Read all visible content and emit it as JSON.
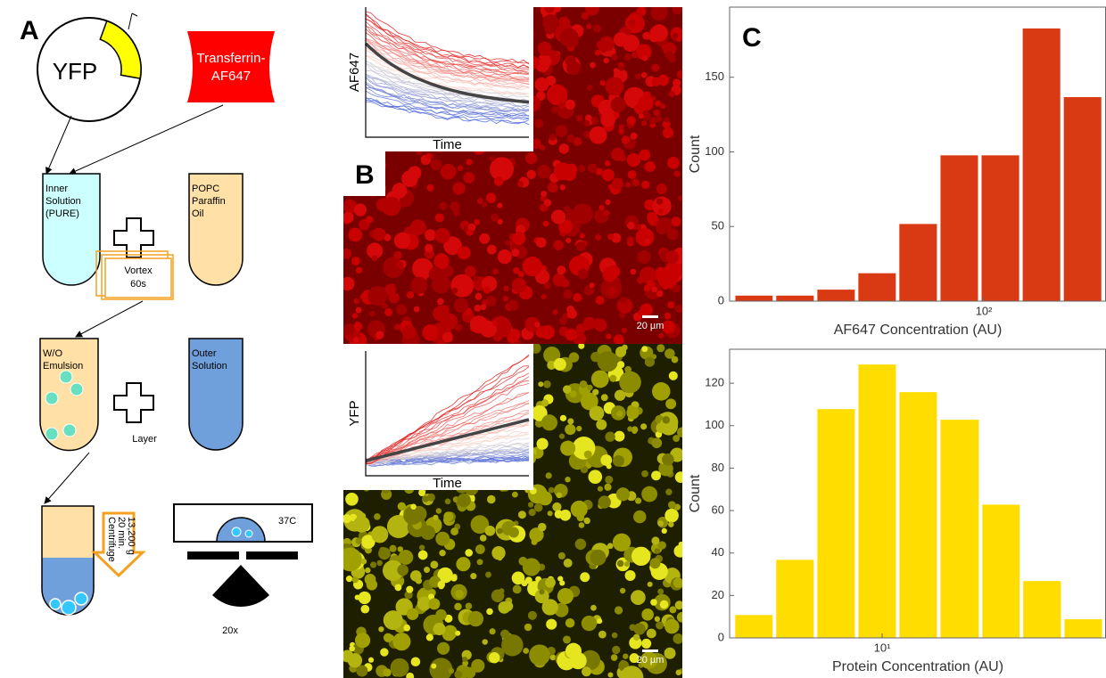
{
  "panel_labels": [
    "A",
    "B",
    "C"
  ],
  "diagram": {
    "plasmid": "YFP",
    "dye": [
      "Transferrin-",
      "AF647"
    ],
    "inner": [
      "Inner",
      "Solution",
      "(PURE)"
    ],
    "oil": [
      "POPC",
      "Paraffin",
      "Oil"
    ],
    "vortex": [
      "Vortex",
      "60s"
    ],
    "emulsion": [
      "W/O",
      "Emulsion"
    ],
    "outer": [
      "Outer",
      "Solution"
    ],
    "layer": "Layer",
    "centrifuge": [
      "Centrifuge",
      "20 min.",
      "13,200 g"
    ],
    "temperature": "37C",
    "objective": "20x"
  },
  "microscopy": [
    {
      "inset_y_label": "AF647",
      "inset_x_label": "Time",
      "scale_bar": "20 µm"
    },
    {
      "inset_y_label": "YFP",
      "inset_x_label": "Time",
      "scale_bar": "20 µm"
    }
  ],
  "chart_data": [
    {
      "type": "histogram",
      "color": "#d93a14",
      "xlabel": "AF647 Concentration (AU)",
      "ylabel": "Count",
      "bins": [
        12.2,
        17.2,
        24.3,
        34.3,
        48.4,
        68.4,
        96.6,
        136.5,
        192.8,
        272.3
      ],
      "values": [
        4,
        4,
        8,
        19,
        52,
        98,
        98,
        183,
        137
      ],
      "log_x": true,
      "xlim": [
        11.8,
        279
      ],
      "ylim": [
        0,
        197
      ],
      "xticks": [
        {
          "value": 100,
          "label": "10²"
        }
      ],
      "yticks": [
        0,
        50,
        100,
        150
      ]
    },
    {
      "type": "histogram",
      "color": "#ffdd00",
      "xlabel": "Protein Concentration (AU)",
      "ylabel": "Count",
      "bins": [
        2.86,
        4.04,
        5.71,
        8.07,
        11.4,
        16.1,
        22.9,
        32.3,
        45.7,
        64.6
      ],
      "values": [
        11,
        37,
        108,
        129,
        116,
        103,
        63,
        27,
        9
      ],
      "log_x": true,
      "xlim": [
        2.77,
        65.8
      ],
      "ylim": [
        0,
        136
      ],
      "xticks": [
        {
          "value": 10,
          "label": "10¹"
        }
      ],
      "yticks": [
        0,
        20,
        40,
        60,
        80,
        100,
        120
      ]
    }
  ]
}
